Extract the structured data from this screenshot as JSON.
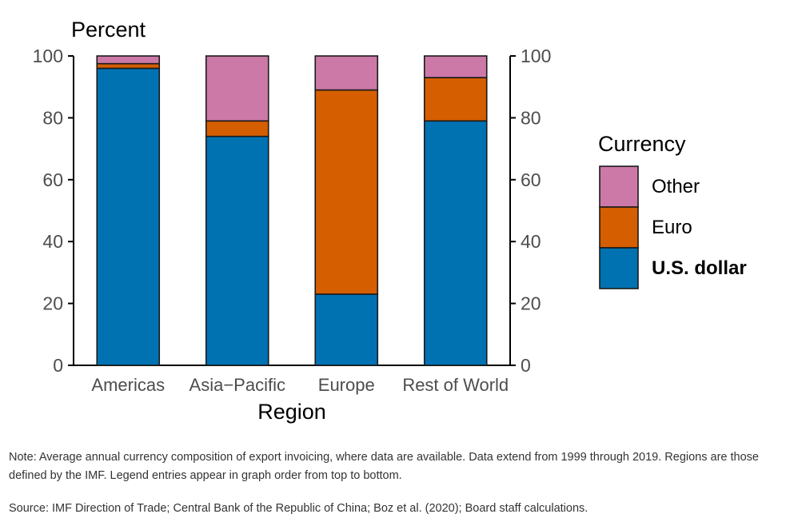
{
  "chart_data": {
    "type": "bar",
    "stacked": true,
    "categories": [
      "Americas",
      "Asia−Pacific",
      "Europe",
      "Rest of World"
    ],
    "series": [
      {
        "name": "U.S. dollar",
        "values": [
          96,
          74,
          23,
          79
        ],
        "color": "#0072B2"
      },
      {
        "name": "Euro",
        "values": [
          1.5,
          5,
          66,
          14
        ],
        "color": "#D55E00"
      },
      {
        "name": "Other",
        "values": [
          2.5,
          21,
          11,
          7
        ],
        "color": "#CC79A7"
      }
    ],
    "ylim": [
      0,
      100
    ],
    "yticks": [
      "0",
      "20",
      "40",
      "60",
      "80",
      "100"
    ],
    "y_title": "Percent",
    "xlabel": "Region",
    "legend": {
      "title": "Currency",
      "entries": [
        "Other",
        "Euro",
        "U.S. dollar"
      ],
      "placement": "right"
    },
    "grid": false
  },
  "note": "Note: Average annual currency composition of export invoicing, where data are available. Data extend from 1999 through 2019. Regions are those defined by the IMF. Legend entries appear in graph order from top to bottom.",
  "source": "Source: IMF Direction of Trade; Central Bank of the Republic of China; Boz et al. (2020); Board staff calculations."
}
